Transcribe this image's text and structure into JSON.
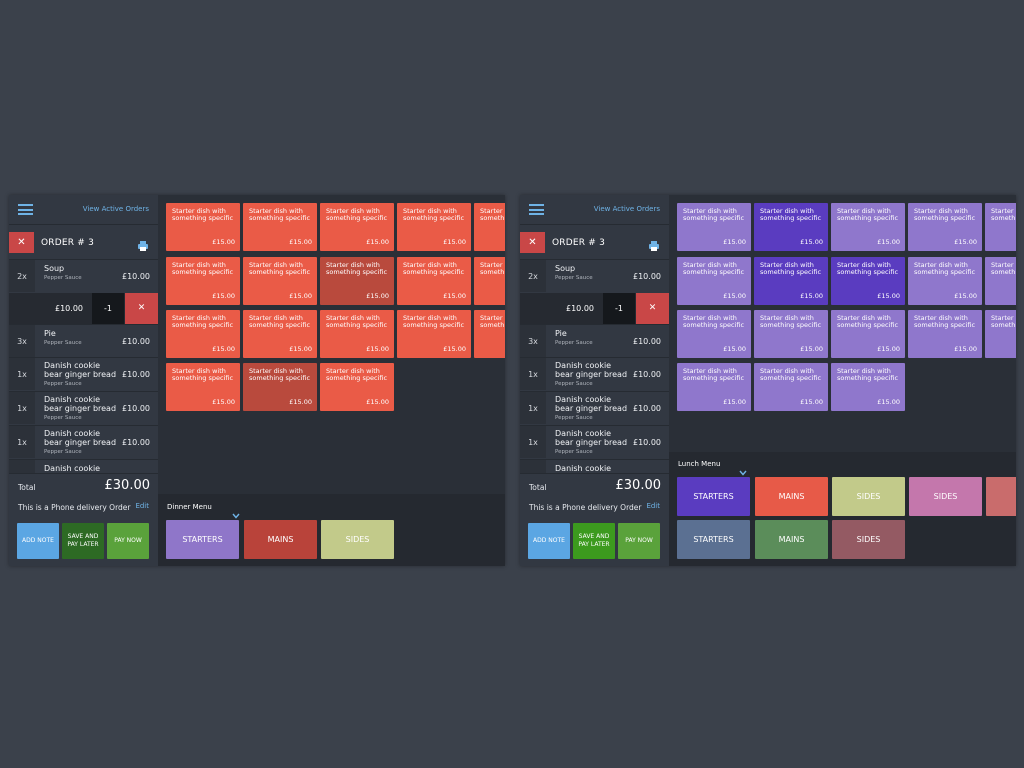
{
  "screens": [
    {
      "id": "dinner",
      "view_active_orders": "View Active Orders",
      "order_title": "ORDER # 3",
      "items": [
        {
          "qty": "2x",
          "name": "Soup",
          "sub": "Pepper Sauce",
          "price": "£10.00"
        },
        {
          "qty": "3x",
          "name": "Pie",
          "sub": "Pepper Sauce",
          "price": "£10.00"
        },
        {
          "qty": "1x",
          "name": "Danish cookie bear ginger bread",
          "sub": "Pepper Sauce",
          "price": "£10.00"
        },
        {
          "qty": "1x",
          "name": "Danish cookie bear ginger bread",
          "sub": "Pepper Sauce",
          "price": "£10.00"
        },
        {
          "qty": "1x",
          "name": "Danish cookie bear ginger bread",
          "sub": "Pepper Sauce",
          "price": "£10.00"
        },
        {
          "qty": "",
          "name": "Danish cookie bear",
          "sub": "",
          "price": ""
        }
      ],
      "edit_price": "£10.00",
      "edit_minus": "-1",
      "total_label": "Total",
      "total_value": "£30.00",
      "delivery_text": "This is a Phone delivery Order",
      "edit_label": "Edit",
      "buttons": {
        "add_note": "ADD NOTE",
        "save_later": "SAVE AND PAY LATER",
        "pay_now": "PAY NOW"
      },
      "tile_name": "Starter dish with something specific",
      "tile_price": "£15.00",
      "menu_label": "Dinner Menu",
      "categories": [
        {
          "label": "STARTERS",
          "color": "#8f76c9"
        },
        {
          "label": "MAINS",
          "color": "#b9433a"
        },
        {
          "label": "SIDES",
          "color": "#c2ca8a"
        }
      ],
      "tile_color": "#ea5b47",
      "tile_selected_color": "#b94a3d"
    },
    {
      "id": "lunch",
      "view_active_orders": "View Active Orders",
      "order_title": "ORDER # 3",
      "items": [
        {
          "qty": "2x",
          "name": "Soup",
          "sub": "Pepper Sauce",
          "price": "£10.00"
        },
        {
          "qty": "3x",
          "name": "Pie",
          "sub": "Pepper Sauce",
          "price": "£10.00"
        },
        {
          "qty": "1x",
          "name": "Danish cookie bear ginger bread",
          "sub": "Pepper Sauce",
          "price": "£10.00"
        },
        {
          "qty": "1x",
          "name": "Danish cookie bear ginger bread",
          "sub": "Pepper Sauce",
          "price": "£10.00"
        },
        {
          "qty": "1x",
          "name": "Danish cookie bear ginger bread",
          "sub": "Pepper Sauce",
          "price": "£10.00"
        },
        {
          "qty": "",
          "name": "Danish cookie bear",
          "sub": "",
          "price": ""
        }
      ],
      "edit_price": "£10.00",
      "edit_minus": "-1",
      "total_label": "Total",
      "total_value": "£30.00",
      "delivery_text": "This is a Phone delivery Order",
      "edit_label": "Edit",
      "buttons": {
        "add_note": "ADD NOTE",
        "save_later": "SAVE AND PAY LATER",
        "pay_now": "PAY NOW"
      },
      "tile_name": "Starter dish with something specific",
      "tile_price": "£15.00",
      "menu_label": "Lunch Menu",
      "categories": [
        {
          "label": "STARTERS",
          "color": "#5a3cc0"
        },
        {
          "label": "MAINS",
          "color": "#e75a48"
        },
        {
          "label": "SIDES",
          "color": "#c2ca8a"
        },
        {
          "label": "SIDES",
          "color": "#c477ac"
        },
        {
          "label": "",
          "color": "#c96c6c"
        },
        {
          "label": "STARTERS",
          "color": "#5b7092"
        },
        {
          "label": "MAINS",
          "color": "#5b8d5a"
        },
        {
          "label": "SIDES",
          "color": "#945a63"
        }
      ],
      "tile_color": "#8f77cc",
      "tile_selected_color": "#5a3cc0"
    }
  ]
}
